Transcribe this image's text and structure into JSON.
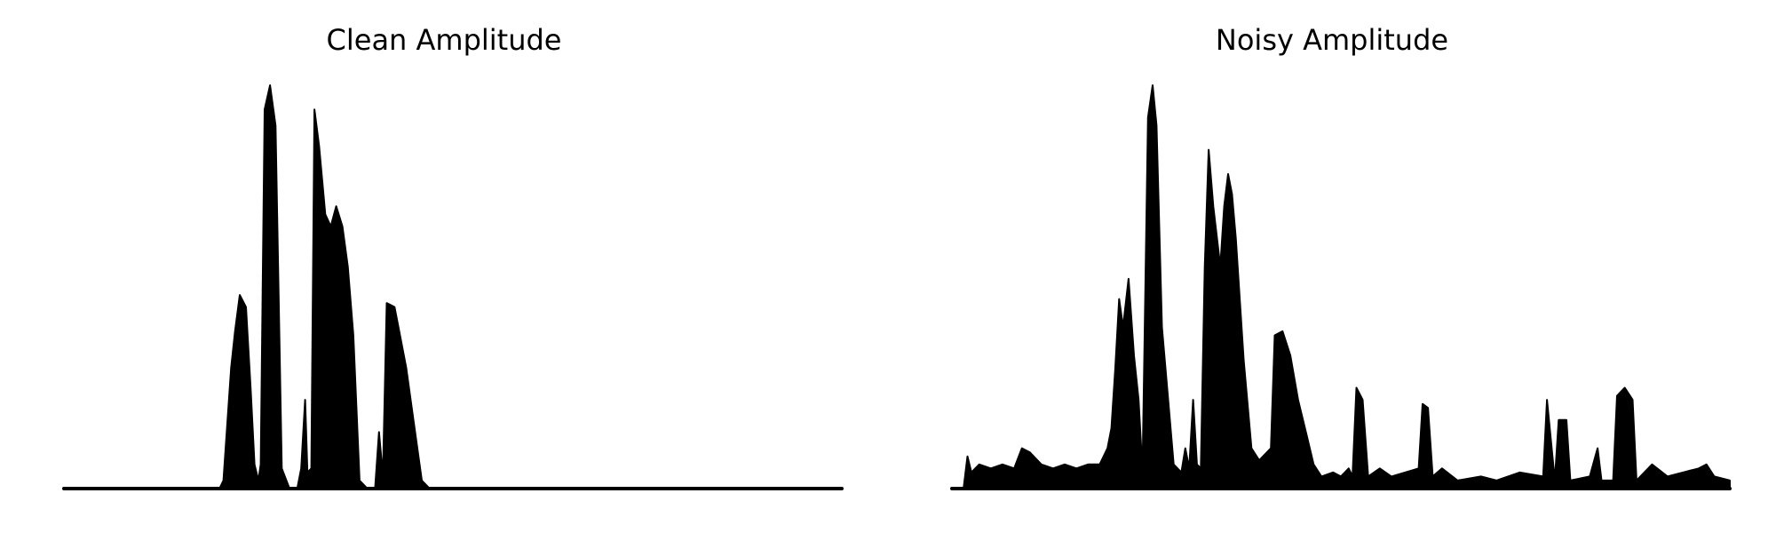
{
  "chart_data": [
    {
      "type": "area",
      "title": "Clean Amplitude",
      "xlabel": "",
      "ylabel": "",
      "axes_visible": false,
      "grid": false,
      "line_color": "#000000",
      "x_range": [
        0,
        1
      ],
      "ylim": [
        0,
        1
      ],
      "envelope_points": [
        [
          0.0,
          0.0
        ],
        [
          0.2,
          0.0
        ],
        [
          0.205,
          0.02
        ],
        [
          0.215,
          0.3
        ],
        [
          0.22,
          0.39
        ],
        [
          0.226,
          0.48
        ],
        [
          0.234,
          0.45
        ],
        [
          0.24,
          0.25
        ],
        [
          0.245,
          0.06
        ],
        [
          0.25,
          0.02
        ],
        [
          0.253,
          0.06
        ],
        [
          0.258,
          0.94
        ],
        [
          0.265,
          1.0
        ],
        [
          0.272,
          0.9
        ],
        [
          0.28,
          0.05
        ],
        [
          0.29,
          0.0
        ],
        [
          0.3,
          0.0
        ],
        [
          0.305,
          0.05
        ],
        [
          0.31,
          0.22
        ],
        [
          0.313,
          0.04
        ],
        [
          0.318,
          0.05
        ],
        [
          0.322,
          0.94
        ],
        [
          0.328,
          0.85
        ],
        [
          0.336,
          0.68
        ],
        [
          0.343,
          0.65
        ],
        [
          0.35,
          0.7
        ],
        [
          0.358,
          0.65
        ],
        [
          0.365,
          0.55
        ],
        [
          0.372,
          0.38
        ],
        [
          0.38,
          0.02
        ],
        [
          0.39,
          0.0
        ],
        [
          0.4,
          0.0
        ],
        [
          0.405,
          0.14
        ],
        [
          0.41,
          0.03
        ],
        [
          0.415,
          0.46
        ],
        [
          0.425,
          0.45
        ],
        [
          0.43,
          0.4
        ],
        [
          0.44,
          0.3
        ],
        [
          0.45,
          0.16
        ],
        [
          0.46,
          0.02
        ],
        [
          0.47,
          0.0
        ],
        [
          1.0,
          0.0
        ]
      ]
    },
    {
      "type": "area",
      "title": "Noisy Amplitude",
      "xlabel": "",
      "ylabel": "",
      "axes_visible": false,
      "grid": false,
      "line_color": "#000000",
      "x_range": [
        0,
        1
      ],
      "ylim": [
        0,
        1
      ],
      "envelope_points": [
        [
          0.0,
          0.0
        ],
        [
          0.015,
          0.0
        ],
        [
          0.02,
          0.08
        ],
        [
          0.025,
          0.04
        ],
        [
          0.035,
          0.06
        ],
        [
          0.05,
          0.05
        ],
        [
          0.065,
          0.06
        ],
        [
          0.08,
          0.05
        ],
        [
          0.09,
          0.1
        ],
        [
          0.1,
          0.09
        ],
        [
          0.115,
          0.06
        ],
        [
          0.13,
          0.05
        ],
        [
          0.145,
          0.06
        ],
        [
          0.16,
          0.05
        ],
        [
          0.175,
          0.06
        ],
        [
          0.19,
          0.06
        ],
        [
          0.2,
          0.1
        ],
        [
          0.205,
          0.15
        ],
        [
          0.21,
          0.3
        ],
        [
          0.215,
          0.47
        ],
        [
          0.22,
          0.4
        ],
        [
          0.227,
          0.52
        ],
        [
          0.234,
          0.33
        ],
        [
          0.24,
          0.22
        ],
        [
          0.245,
          0.04
        ],
        [
          0.252,
          0.92
        ],
        [
          0.258,
          1.0
        ],
        [
          0.263,
          0.9
        ],
        [
          0.27,
          0.4
        ],
        [
          0.278,
          0.22
        ],
        [
          0.285,
          0.06
        ],
        [
          0.295,
          0.04
        ],
        [
          0.3,
          0.1
        ],
        [
          0.305,
          0.05
        ],
        [
          0.31,
          0.22
        ],
        [
          0.315,
          0.06
        ],
        [
          0.32,
          0.05
        ],
        [
          0.325,
          0.55
        ],
        [
          0.33,
          0.84
        ],
        [
          0.336,
          0.7
        ],
        [
          0.345,
          0.55
        ],
        [
          0.35,
          0.7
        ],
        [
          0.355,
          0.78
        ],
        [
          0.36,
          0.73
        ],
        [
          0.365,
          0.62
        ],
        [
          0.375,
          0.32
        ],
        [
          0.385,
          0.1
        ],
        [
          0.395,
          0.07
        ],
        [
          0.41,
          0.1
        ],
        [
          0.415,
          0.38
        ],
        [
          0.425,
          0.39
        ],
        [
          0.435,
          0.33
        ],
        [
          0.445,
          0.22
        ],
        [
          0.455,
          0.14
        ],
        [
          0.465,
          0.06
        ],
        [
          0.475,
          0.03
        ],
        [
          0.49,
          0.04
        ],
        [
          0.5,
          0.03
        ],
        [
          0.51,
          0.05
        ],
        [
          0.515,
          0.03
        ],
        [
          0.52,
          0.25
        ],
        [
          0.528,
          0.22
        ],
        [
          0.535,
          0.03
        ],
        [
          0.55,
          0.05
        ],
        [
          0.565,
          0.03
        ],
        [
          0.6,
          0.05
        ],
        [
          0.605,
          0.21
        ],
        [
          0.612,
          0.2
        ],
        [
          0.618,
          0.03
        ],
        [
          0.63,
          0.05
        ],
        [
          0.65,
          0.02
        ],
        [
          0.68,
          0.03
        ],
        [
          0.7,
          0.02
        ],
        [
          0.73,
          0.04
        ],
        [
          0.76,
          0.03
        ],
        [
          0.765,
          0.22
        ],
        [
          0.775,
          0.02
        ],
        [
          0.78,
          0.17
        ],
        [
          0.79,
          0.17
        ],
        [
          0.795,
          0.02
        ],
        [
          0.82,
          0.03
        ],
        [
          0.83,
          0.1
        ],
        [
          0.835,
          0.02
        ],
        [
          0.85,
          0.02
        ],
        [
          0.855,
          0.23
        ],
        [
          0.865,
          0.25
        ],
        [
          0.875,
          0.22
        ],
        [
          0.88,
          0.02
        ],
        [
          0.9,
          0.06
        ],
        [
          0.92,
          0.03
        ],
        [
          0.94,
          0.04
        ],
        [
          0.96,
          0.05
        ],
        [
          0.97,
          0.06
        ],
        [
          0.98,
          0.03
        ],
        [
          1.0,
          0.02
        ]
      ]
    }
  ]
}
